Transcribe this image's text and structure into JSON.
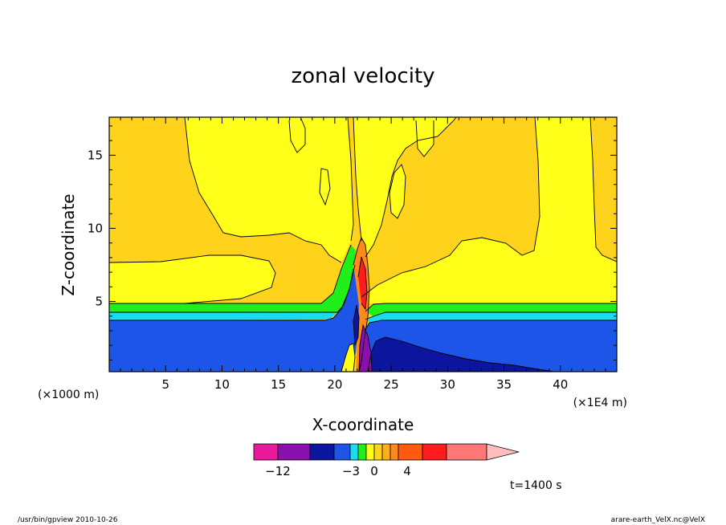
{
  "chart_data": {
    "type": "contour",
    "title": "zonal velocity",
    "xlabel": "X-coordinate",
    "ylabel": "Z-coordinate",
    "x_unit_left": "(×1000 m)",
    "x_unit_right": "(×1E4 m)",
    "xlim": [
      0,
      45
    ],
    "ylim": [
      0.2,
      17.6
    ],
    "x_ticks": [
      5,
      10,
      15,
      20,
      25,
      30,
      35,
      40
    ],
    "y_ticks": [
      5,
      10,
      15
    ],
    "time_label": "t=1400 s",
    "colorbar": {
      "colors": [
        "#e8199b",
        "#8b0fae",
        "#0c159e",
        "#1c55e8",
        "#19dcf2",
        "#1ff01a",
        "#ffff1a",
        "#ffd21c",
        "#ffad1c",
        "#ff8a1c",
        "#ff5a0e",
        "#ff1c1c",
        "#ff7777",
        "#ffbdbd"
      ],
      "tick_labels": [
        "−12",
        "−3",
        "0",
        "4"
      ]
    },
    "field_colors": {
      "deep_negative": "#0c159e",
      "negative": "#1c55e8",
      "cyan_band": "#19dcf2",
      "green_band": "#1ff01a",
      "near_zero": "#ffff1a",
      "positive": "#ffd21c"
    }
  },
  "footer": {
    "left": "/usr/bin/gpview   2010-10-26",
    "right": "arare-earth_VelX.nc@VelX"
  }
}
